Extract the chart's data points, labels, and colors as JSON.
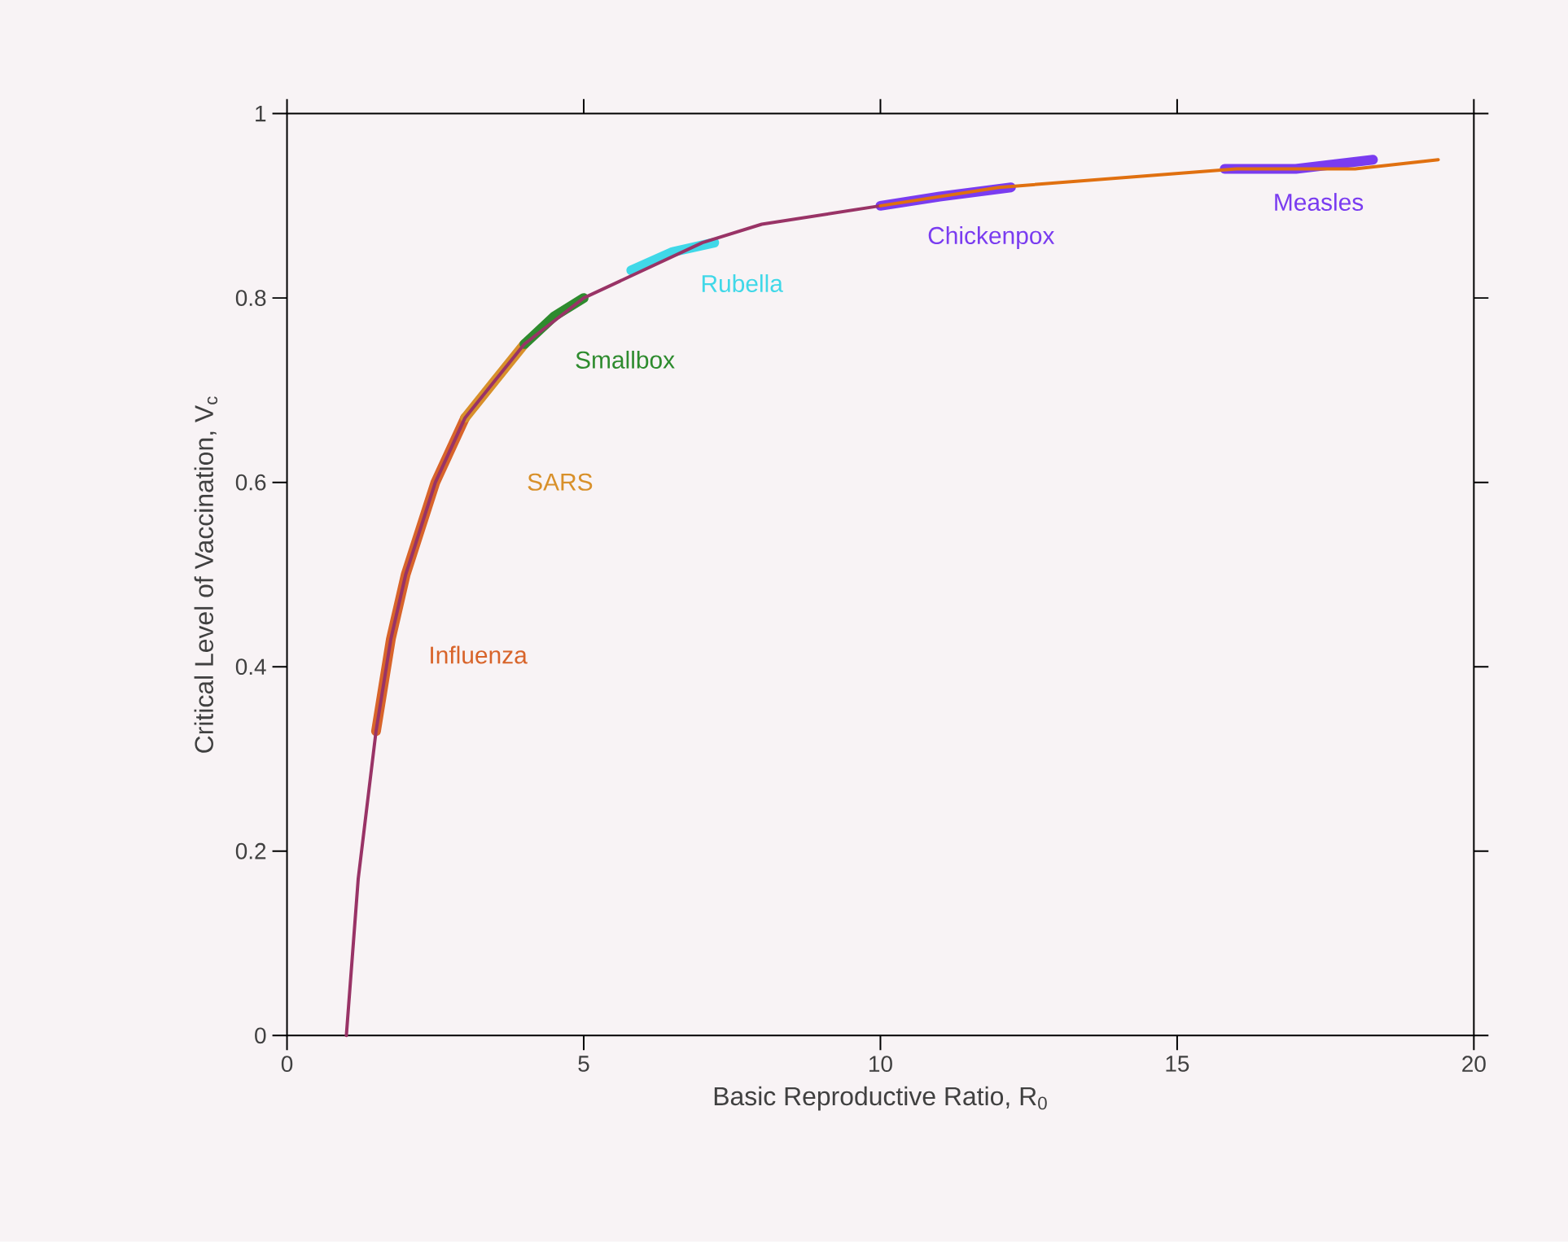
{
  "chart_data": {
    "type": "line",
    "xlabel": "Basic Reproductive Ratio, R$_{0}$",
    "ylabel": "Critical Level of Vaccination, V$_{c}$",
    "xlim": [
      0,
      20
    ],
    "ylim": [
      0,
      1
    ],
    "xticks": [
      0,
      5,
      10,
      15,
      20
    ],
    "yticks": [
      0,
      0.2,
      0.4,
      0.6,
      0.8,
      1
    ],
    "series": [
      {
        "name": "Influenza",
        "color": "#d8642a",
        "x": [
          1.5,
          1.75,
          2,
          2.5,
          3
        ],
        "values": [
          0.33,
          0.43,
          0.5,
          0.6,
          0.67
        ]
      },
      {
        "name": "SARS",
        "color": "#d8902a",
        "x": [
          3,
          3.5,
          4
        ],
        "values": [
          0.67,
          0.71,
          0.75
        ]
      },
      {
        "name": "Smallbox",
        "color": "#2e8b2e",
        "x": [
          4,
          4.5,
          5
        ],
        "values": [
          0.75,
          0.78,
          0.8
        ]
      },
      {
        "name": "Rubella",
        "color": "#40d8e8",
        "x": [
          5.8,
          6.5,
          7.2
        ],
        "values": [
          0.83,
          0.85,
          0.86
        ]
      },
      {
        "name": "Chickenpox",
        "color": "#7a3cf0",
        "x": [
          10,
          11,
          12.2
        ],
        "values": [
          0.9,
          0.91,
          0.92
        ]
      },
      {
        "name": "Measles",
        "color": "#7a3cf0",
        "x": [
          15.8,
          17,
          18.3
        ],
        "values": [
          0.94,
          0.94,
          0.95
        ]
      },
      {
        "color": "#993366",
        "x": [
          1,
          1.2,
          1.5,
          1.75,
          2,
          2.5,
          3,
          3.5,
          4,
          5,
          6,
          7,
          8,
          10
        ],
        "values": [
          0,
          0.17,
          0.33,
          0.43,
          0.5,
          0.6,
          0.67,
          0.71,
          0.75,
          0.8,
          0.83,
          0.86,
          0.88,
          0.9
        ]
      },
      {
        "color": "#e07010",
        "x": [
          10,
          12,
          14,
          16,
          18,
          19.4
        ],
        "values": [
          0.9,
          0.92,
          0.93,
          0.94,
          0.94,
          0.95
        ]
      }
    ]
  }
}
